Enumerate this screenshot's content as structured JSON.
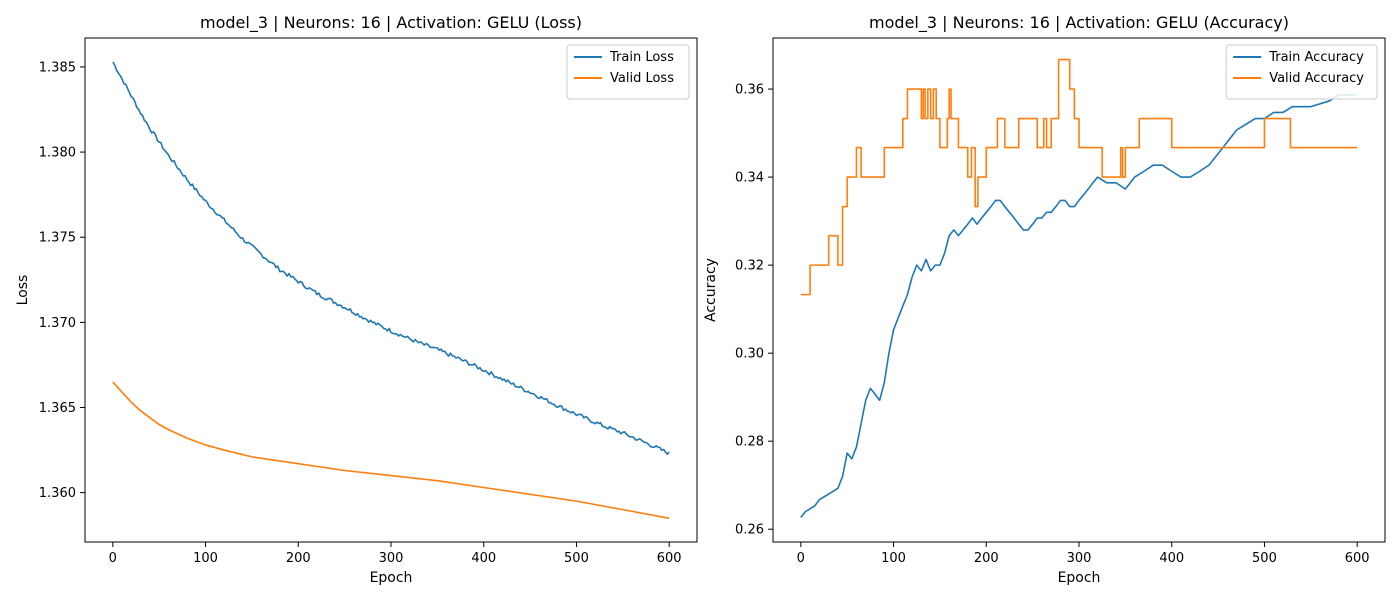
{
  "chart_data": [
    {
      "type": "line",
      "title": "model_3 | Neurons: 16 | Activation: GELU (Loss)",
      "xlabel": "Epoch",
      "ylabel": "Loss",
      "xlim": [
        -30,
        630
      ],
      "ylim": [
        1.3571,
        1.3867
      ],
      "xticks": [
        0,
        100,
        200,
        300,
        400,
        500,
        600
      ],
      "yticks": [
        1.36,
        1.365,
        1.37,
        1.375,
        1.38,
        1.385
      ],
      "ytick_decimals": 3,
      "grid": false,
      "legend_position": "top-right",
      "series": [
        {
          "name": "Train Loss",
          "color": "#1f77b4",
          "x": [
            0,
            10,
            20,
            30,
            40,
            50,
            60,
            70,
            80,
            100,
            120,
            140,
            160,
            180,
            200,
            220,
            250,
            280,
            300,
            330,
            350,
            380,
            400,
            430,
            450,
            480,
            500,
            530,
            550,
            580,
            600
          ],
          "y": [
            1.3853,
            1.3843,
            1.3833,
            1.3823,
            1.3814,
            1.3806,
            1.3798,
            1.3791,
            1.3784,
            1.3771,
            1.376,
            1.3749,
            1.374,
            1.3731,
            1.3724,
            1.3717,
            1.3709,
            1.37,
            1.3695,
            1.3688,
            1.3684,
            1.3677,
            1.3672,
            1.3664,
            1.3659,
            1.3651,
            1.3646,
            1.3639,
            1.3635,
            1.3628,
            1.3623
          ],
          "noise": 0.00012
        },
        {
          "name": "Valid Loss",
          "color": "#ff7f0e",
          "x": [
            0,
            10,
            20,
            30,
            40,
            50,
            60,
            80,
            100,
            120,
            150,
            200,
            250,
            300,
            350,
            400,
            450,
            500,
            550,
            600
          ],
          "y": [
            1.3665,
            1.3659,
            1.3653,
            1.3648,
            1.3644,
            1.364,
            1.3637,
            1.3632,
            1.3628,
            1.3625,
            1.3621,
            1.3617,
            1.3613,
            1.361,
            1.3607,
            1.3603,
            1.3599,
            1.3595,
            1.359,
            1.3585
          ]
        }
      ]
    },
    {
      "type": "line",
      "title": "model_3 | Neurons: 16 | Activation: GELU (Accuracy)",
      "xlabel": "Epoch",
      "ylabel": "Accuracy",
      "xlim": [
        -30,
        630
      ],
      "ylim": [
        0.2571,
        0.3716
      ],
      "xticks": [
        0,
        100,
        200,
        300,
        400,
        500,
        600
      ],
      "yticks": [
        0.26,
        0.28,
        0.3,
        0.32,
        0.34,
        0.36
      ],
      "ytick_decimals": 2,
      "grid": false,
      "legend_position": "top-right",
      "series": [
        {
          "name": "Train Accuracy",
          "color": "#1f77b4",
          "x": [
            0,
            5,
            15,
            20,
            30,
            40,
            45,
            50,
            55,
            60,
            65,
            70,
            75,
            80,
            85,
            90,
            95,
            100,
            105,
            110,
            115,
            120,
            125,
            130,
            135,
            140,
            145,
            150,
            155,
            160,
            165,
            170,
            175,
            180,
            185,
            190,
            195,
            200,
            205,
            210,
            215,
            220,
            225,
            230,
            235,
            240,
            245,
            250,
            255,
            260,
            265,
            270,
            275,
            280,
            285,
            290,
            295,
            300,
            305,
            310,
            315,
            320,
            330,
            340,
            350,
            360,
            370,
            380,
            390,
            400,
            410,
            420,
            430,
            440,
            450,
            460,
            470,
            480,
            490,
            500,
            510,
            520,
            530,
            550,
            570,
            580,
            600
          ],
          "y": [
            0.2627,
            0.264,
            0.2653,
            0.2667,
            0.268,
            0.2693,
            0.272,
            0.2773,
            0.276,
            0.2787,
            0.284,
            0.2893,
            0.292,
            0.2907,
            0.2893,
            0.2933,
            0.3,
            0.3053,
            0.308,
            0.3107,
            0.3133,
            0.3173,
            0.32,
            0.3187,
            0.3213,
            0.3187,
            0.32,
            0.32,
            0.3227,
            0.3267,
            0.328,
            0.3267,
            0.328,
            0.3293,
            0.3307,
            0.3293,
            0.3307,
            0.332,
            0.3333,
            0.3347,
            0.3347,
            0.3333,
            0.332,
            0.3307,
            0.3293,
            0.328,
            0.328,
            0.3293,
            0.3307,
            0.3307,
            0.332,
            0.332,
            0.3333,
            0.3347,
            0.3347,
            0.3333,
            0.3333,
            0.3347,
            0.336,
            0.3373,
            0.3387,
            0.34,
            0.3387,
            0.3387,
            0.3373,
            0.34,
            0.3413,
            0.3427,
            0.3427,
            0.3413,
            0.34,
            0.34,
            0.3413,
            0.3427,
            0.3453,
            0.348,
            0.3507,
            0.352,
            0.3533,
            0.3533,
            0.3547,
            0.3547,
            0.356,
            0.356,
            0.3573,
            0.3587,
            0.3587
          ],
          "step": false
        },
        {
          "name": "Valid Accuracy",
          "color": "#ff7f0e",
          "x": [
            0,
            10,
            30,
            35,
            40,
            45,
            50,
            60,
            65,
            70,
            90,
            110,
            115,
            130,
            132,
            134,
            137,
            140,
            143,
            146,
            150,
            158,
            160,
            162,
            165,
            170,
            180,
            184,
            188,
            191,
            194,
            200,
            212,
            215,
            220,
            235,
            255,
            262,
            265,
            270,
            278,
            280,
            290,
            295,
            300,
            325,
            345,
            347,
            350,
            355,
            365,
            400,
            500,
            525,
            528,
            550,
            600
          ],
          "y": [
            0.3133,
            0.32,
            0.3267,
            0.3267,
            0.32,
            0.3333,
            0.34,
            0.3467,
            0.34,
            0.34,
            0.3467,
            0.3533,
            0.36,
            0.3533,
            0.36,
            0.3533,
            0.36,
            0.3533,
            0.36,
            0.3533,
            0.3467,
            0.3533,
            0.36,
            0.3533,
            0.3533,
            0.3467,
            0.34,
            0.3467,
            0.3333,
            0.34,
            0.34,
            0.3467,
            0.3533,
            0.3533,
            0.3467,
            0.3533,
            0.3467,
            0.3533,
            0.3467,
            0.3533,
            0.3667,
            0.3667,
            0.36,
            0.3533,
            0.3467,
            0.34,
            0.3467,
            0.34,
            0.3467,
            0.3467,
            0.3533,
            0.3467,
            0.3533,
            0.3533,
            0.3467,
            0.3467,
            0.3467
          ],
          "step": true
        }
      ]
    }
  ]
}
